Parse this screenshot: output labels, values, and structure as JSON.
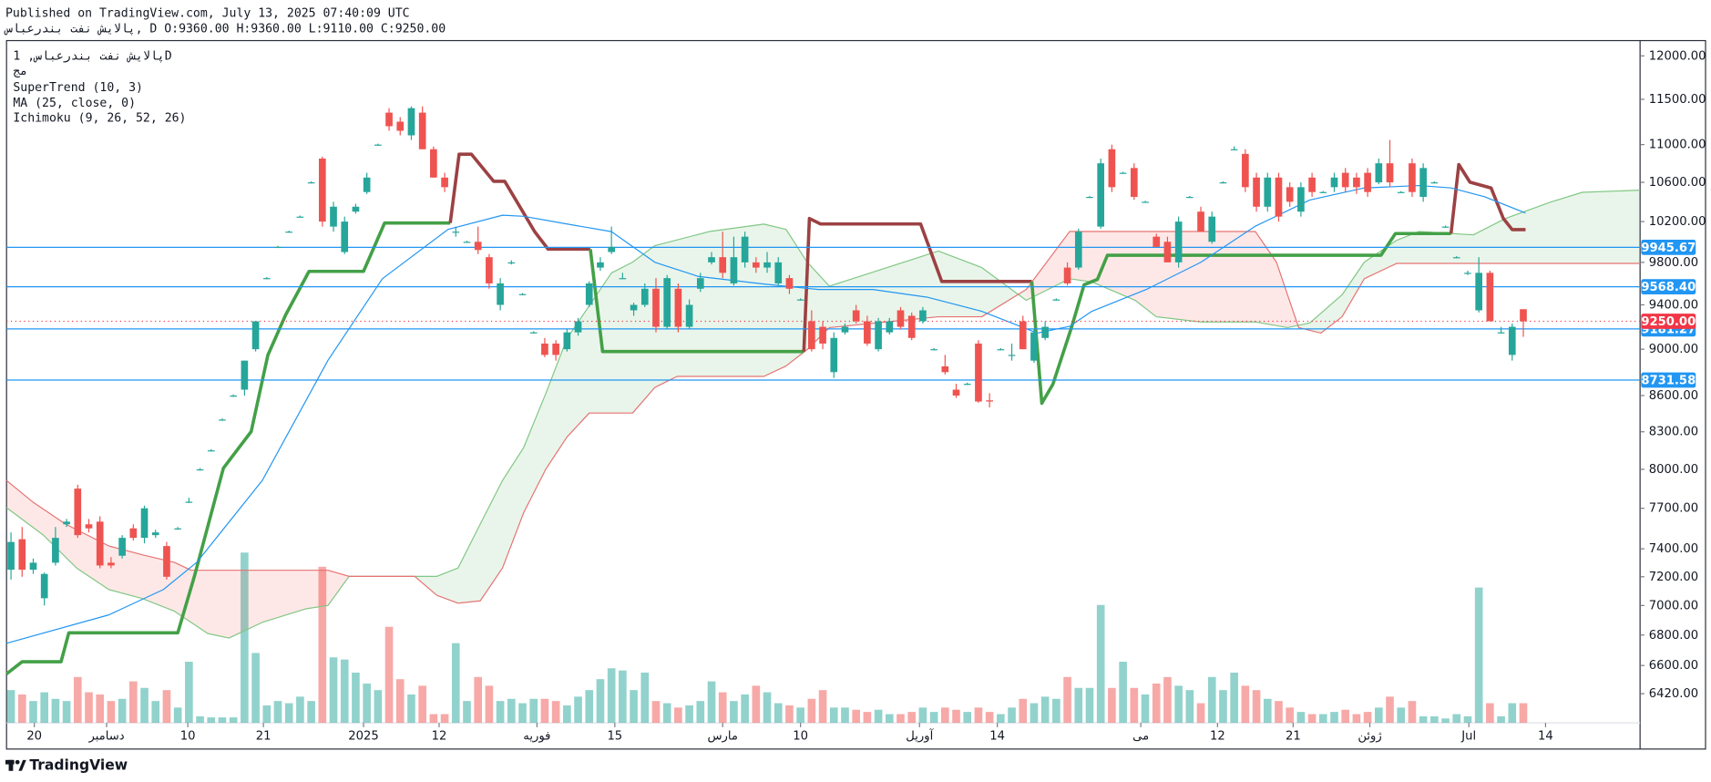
{
  "header": {
    "published": "Published on TradingView.com, July 13, 2025 07:40:09 UTC",
    "quote": "پالایش نفت بندرعباس, D O:9360.00 H:9360.00 L:9110.00 C:9250.00"
  },
  "chart_data": {
    "type": "candlestick",
    "symbol": "پالایش نفت بندرعباس, 1D",
    "exchange": "مج",
    "log_scale": true,
    "grid": false,
    "xlim": [
      -0.4,
      146.5
    ],
    "xticks": [
      {
        "value": 2.1,
        "label": "20"
      },
      {
        "value": 8.6,
        "label": "دسامبر"
      },
      {
        "value": 15.9,
        "label": "10"
      },
      {
        "value": 22.7,
        "label": "21"
      },
      {
        "value": 31.7,
        "label": "2025"
      },
      {
        "value": 38.5,
        "label": "12"
      },
      {
        "value": 47.3,
        "label": "فوریه"
      },
      {
        "value": 54.3,
        "label": "15"
      },
      {
        "value": 64,
        "label": "مارس"
      },
      {
        "value": 71,
        "label": "10"
      },
      {
        "value": 81.7,
        "label": "آوریل"
      },
      {
        "value": 88.7,
        "label": "14"
      },
      {
        "value": 101.6,
        "label": "می"
      },
      {
        "value": 108.5,
        "label": "12"
      },
      {
        "value": 115.3,
        "label": "21"
      },
      {
        "value": 122.2,
        "label": "ژوئن"
      },
      {
        "value": 131.1,
        "label": "Jul"
      },
      {
        "value": 138,
        "label": "14"
      }
    ],
    "ylim": [
      6239,
      12181
    ],
    "yticks": [
      {
        "value": 12000,
        "label": "12000.00"
      },
      {
        "value": 11500,
        "label": "11500.00"
      },
      {
        "value": 11000,
        "label": "11000.00"
      },
      {
        "value": 10600,
        "label": "10600.00"
      },
      {
        "value": 10200,
        "label": "10200.00"
      },
      {
        "value": 9800,
        "label": "9800.00"
      },
      {
        "value": 9400,
        "label": "9400.00"
      },
      {
        "value": 9000,
        "label": "9000.00"
      },
      {
        "value": 8600,
        "label": "8600.00"
      },
      {
        "value": 8300,
        "label": "8300.00"
      },
      {
        "value": 8000,
        "label": "8000.00"
      },
      {
        "value": 7700,
        "label": "7700.00"
      },
      {
        "value": 7400,
        "label": "7400.00"
      },
      {
        "value": 7200,
        "label": "7200.00"
      },
      {
        "value": 7000,
        "label": "7000.00"
      },
      {
        "value": 6800,
        "label": "6800.00"
      },
      {
        "value": 6600,
        "label": "6600.00"
      },
      {
        "value": 6420,
        "label": "6420.00"
      }
    ],
    "up_color": "#26a69a",
    "down_color": "#ef5350",
    "volume_up_color": "rgba(38,166,154,0.5)",
    "volume_down_color": "rgba(239,83,80,0.5)",
    "open": [
      7250,
      7470,
      7250,
      7050,
      7300,
      7580,
      7850,
      7580,
      7600,
      7300,
      7350,
      7550,
      7480,
      7500,
      7420,
      7550,
      7750,
      8000,
      8150,
      8400,
      8600,
      8650,
      9000,
      9650,
      9950,
      10100,
      10250,
      10600,
      10850,
      10150,
      9900,
      10300,
      10500,
      11000,
      11350,
      11250,
      11100,
      11350,
      10950,
      10650,
      10100,
      10000,
      10000,
      9850,
      9400,
      9800,
      9500,
      9150,
      9050,
      9050,
      9000,
      9150,
      9400,
      9750,
      9900,
      9650,
      9350,
      9400,
      9550,
      9200,
      9550,
      9200,
      9550,
      9800,
      9850,
      9600,
      9800,
      9800,
      9750,
      9600,
      9650,
      9450,
      9250,
      9200,
      8800,
      9150,
      9350,
      9250,
      9000,
      9150,
      9350,
      9300,
      9250,
      9000,
      8850,
      8650,
      8700,
      9050,
      8560,
      9000,
      8950,
      9250,
      8900,
      9100,
      9450,
      9750,
      9750,
      10450,
      10150,
      10950,
      10700,
      10750,
      10400,
      10050,
      10000,
      9800,
      10450,
      10300,
      10000,
      10600,
      10950,
      10900,
      10650,
      10350,
      10650,
      10550,
      10300,
      10650,
      10500,
      10550,
      10700,
      10650,
      10700,
      10600,
      10800,
      10500,
      10800,
      10450,
      10600,
      10150,
      9850,
      9700,
      9350,
      9700,
      9150,
      8950,
      9360
    ],
    "high": [
      7520,
      7560,
      7330,
      7230,
      7560,
      7620,
      7880,
      7620,
      7640,
      7340,
      7500,
      7580,
      7720,
      7540,
      7450,
      7560,
      7780,
      8010,
      8160,
      8410,
      8610,
      8900,
      9250,
      9660,
      9960,
      10110,
      10260,
      10610,
      10870,
      10400,
      10250,
      10380,
      10700,
      11010,
      11400,
      11300,
      11420,
      11420,
      10980,
      10700,
      10150,
      10010,
      10150,
      9880,
      9650,
      9820,
      9510,
      9160,
      9100,
      9080,
      9180,
      9280,
      9620,
      9850,
      10150,
      9700,
      9420,
      9600,
      9650,
      9680,
      9600,
      9450,
      9700,
      9900,
      10100,
      10050,
      10100,
      9850,
      9900,
      9850,
      9680,
      9460,
      9350,
      9250,
      9150,
      9230,
      9400,
      9300,
      9280,
      9280,
      9380,
      9330,
      9380,
      9010,
      8950,
      8700,
      8710,
      9080,
      8620,
      9010,
      9050,
      9300,
      9180,
      9250,
      9460,
      9800,
      10130,
      10460,
      10850,
      11000,
      10710,
      10800,
      10410,
      10080,
      10050,
      10250,
      10460,
      10350,
      10300,
      10610,
      10980,
      10950,
      10700,
      10700,
      10700,
      10600,
      10600,
      10700,
      10510,
      10700,
      10750,
      10700,
      10750,
      10850,
      11050,
      10510,
      10850,
      10800,
      10610,
      10160,
      9860,
      9720,
      9850,
      9720,
      9200,
      9230,
      9360
    ],
    "low": [
      7180,
      7200,
      7220,
      7000,
      7280,
      7560,
      7480,
      7520,
      7260,
      7260,
      7330,
      7460,
      7440,
      7480,
      7180,
      7540,
      7740,
      7990,
      8140,
      8390,
      8590,
      8600,
      8980,
      9640,
      9940,
      10090,
      10240,
      10590,
      10150,
      10100,
      9880,
      10280,
      10480,
      10990,
      11150,
      11100,
      11050,
      10950,
      10650,
      10500,
      10050,
      9990,
      9880,
      9550,
      9350,
      9780,
      9490,
      9140,
      8930,
      8900,
      8980,
      9120,
      9380,
      9720,
      9880,
      9640,
      9300,
      9380,
      9150,
      9180,
      9150,
      9180,
      9520,
      9780,
      9650,
      9580,
      9750,
      9700,
      9700,
      9580,
      9500,
      9440,
      8980,
      9000,
      8750,
      9130,
      9230,
      9030,
      8980,
      9130,
      9180,
      9080,
      9230,
      8990,
      8780,
      8580,
      8690,
      8540,
      8500,
      8990,
      8900,
      9000,
      8880,
      9080,
      9440,
      9580,
      9730,
      10440,
      10130,
      10500,
      10690,
      10420,
      10390,
      9950,
      9800,
      9750,
      10440,
      10100,
      9980,
      10590,
      10940,
      10500,
      10300,
      10300,
      10200,
      10350,
      10250,
      10450,
      10490,
      10500,
      10500,
      10480,
      10450,
      10580,
      10550,
      10490,
      10450,
      10400,
      10590,
      10140,
      9840,
      9680,
      9330,
      9250,
      9140,
      8900,
      9110
    ],
    "close": [
      7450,
      7250,
      7300,
      7220,
      7480,
      7600,
      7500,
      7550,
      7280,
      7280,
      7480,
      7480,
      7700,
      7520,
      7200,
      7550,
      7750,
      8000,
      8150,
      8400,
      8600,
      8900,
      9250,
      9650,
      9950,
      10100,
      10250,
      10600,
      10200,
      10350,
      10200,
      10350,
      10650,
      11000,
      11200,
      11150,
      11400,
      10950,
      10650,
      10550,
      10100,
      10000,
      9920,
      9600,
      9600,
      9800,
      9500,
      9150,
      8950,
      8950,
      9150,
      9250,
      9600,
      9800,
      9950,
      9650,
      9400,
      9550,
      9200,
      9650,
      9200,
      9400,
      9650,
      9850,
      9700,
      9850,
      10050,
      9750,
      9800,
      9800,
      9550,
      9450,
      9000,
      9050,
      9100,
      9200,
      9250,
      9050,
      9250,
      9250,
      9200,
      9100,
      9350,
      9000,
      8800,
      8600,
      8700,
      8550,
      8550,
      9000,
      8950,
      9000,
      9150,
      9200,
      9450,
      9600,
      10100,
      10450,
      10800,
      10550,
      10700,
      10450,
      10400,
      9950,
      9800,
      10200,
      10450,
      10100,
      10250,
      10600,
      10950,
      10550,
      10350,
      10650,
      10250,
      10400,
      10550,
      10500,
      10500,
      10650,
      10550,
      10550,
      10500,
      10800,
      10600,
      10500,
      10500,
      10750,
      10600,
      10150,
      9850,
      9700,
      9700,
      9250,
      9150,
      9200,
      9250
    ],
    "volume_lim": [
      0,
      160
    ],
    "volume": [
      30,
      26,
      20,
      28,
      22,
      20,
      42,
      28,
      26,
      20,
      22,
      38,
      32,
      20,
      30,
      14,
      56,
      6,
      5,
      5,
      5,
      156,
      64,
      16,
      20,
      18,
      24,
      20,
      143,
      60,
      58,
      46,
      36,
      30,
      88,
      40,
      26,
      34,
      8,
      8,
      73,
      20,
      42,
      34,
      20,
      22,
      18,
      22,
      22,
      20,
      16,
      24,
      30,
      40,
      50,
      48,
      30,
      46,
      20,
      18,
      14,
      16,
      20,
      38,
      28,
      20,
      26,
      34,
      28,
      18,
      16,
      14,
      22,
      30,
      14,
      14,
      12,
      10,
      12,
      8,
      8,
      10,
      14,
      10,
      14,
      12,
      10,
      14,
      10,
      8,
      14,
      22,
      18,
      24,
      22,
      42,
      32,
      32,
      108,
      32,
      56,
      32,
      26,
      36,
      42,
      34,
      30,
      18,
      42,
      30,
      46,
      34,
      30,
      22,
      20,
      14,
      10,
      8,
      8,
      10,
      12,
      8,
      10,
      14,
      24,
      14,
      20,
      6,
      6,
      4,
      8,
      6,
      124,
      18,
      6,
      18,
      18
    ],
    "indicators": [
      {
        "name": "SuperTrend (10, 3)",
        "width": 3,
        "segments": [
          {
            "color": "#43a047",
            "x": [
              -0.4,
              1,
              4.5,
              5.2,
              15,
              16.5,
              19.1,
              21.6,
              23.1,
              24.7,
              26.8,
              31.7,
              33.6,
              39.5
            ],
            "values": [
              6546,
              6624,
              6624,
              6815,
              6815,
              7205,
              8009,
              8302,
              8948,
              9308,
              9714,
              9714,
              10186,
              10186
            ]
          },
          {
            "color": "#9c4143",
            "x": [
              39.5,
              40.3,
              41.4,
              43.4,
              44.4,
              47.1,
              48.3,
              52.1
            ],
            "values": [
              10186,
              10897,
              10897,
              10611,
              10611,
              10099,
              9928,
              9928
            ]
          },
          {
            "color": "#43a047",
            "x": [
              52.1,
              53.2,
              71.3
            ],
            "values": [
              9928,
              8980,
              8980
            ]
          },
          {
            "color": "#9c4143",
            "x": [
              71.3,
              71.8,
              72.8,
              81.8,
              83.7,
              91.8
            ],
            "values": [
              8980,
              10231,
              10176,
              10176,
              9618,
              9618
            ]
          },
          {
            "color": "#43a047",
            "x": [
              91.8,
              92.7,
              93.7,
              95.4,
              96.5,
              97.7,
              98.6,
              123.2,
              124.5,
              129.5
            ],
            "values": [
              9618,
              8535,
              8697,
              9204,
              9587,
              9638,
              9869,
              9869,
              10081,
              10081
            ]
          },
          {
            "color": "#9c4143",
            "x": [
              129.5,
              130.2,
              131.2,
              133.1,
              134.2,
              135,
              136.2
            ],
            "values": [
              10081,
              10787,
              10602,
              10542,
              10232,
              10120,
              10120
            ]
          }
        ]
      },
      {
        "name": "MA (25, close, 0)",
        "width": 1,
        "line": {
          "color": "#2196f3",
          "x": [
            -0.4,
            8.8,
            13.7,
            16.7,
            22.6,
            28.5,
            33.4,
            39.3,
            44.2,
            46.1,
            50,
            54,
            57.9,
            61.8,
            67.7,
            72.6,
            77.5,
            82.4,
            87.3,
            92.3,
            95.2,
            97.2,
            102.1,
            107,
            111.9,
            116.8,
            121.7,
            126.6,
            129.5,
            132.5,
            136.2
          ],
          "values": [
            6745,
            6936,
            7110,
            7302,
            7913,
            8902,
            9644,
            10122,
            10264,
            10253,
            10176,
            10100,
            9801,
            9666,
            9594,
            9543,
            9543,
            9471,
            9341,
            9144,
            9204,
            9341,
            9543,
            9801,
            10154,
            10418,
            10542,
            10567,
            10542,
            10452,
            10286
          ]
        }
      },
      {
        "name": "Ichimoku (9, 26, 52, 26)",
        "width": 1,
        "up_fill": "rgba(76,175,80,0.12)",
        "down_fill": "rgba(244,67,54,0.12)",
        "span_a": {
          "color": "#81c784",
          "x": [
            -0.4,
            2.9,
            5.9,
            8.8,
            11.8,
            14.7,
            17.7,
            19.6,
            22.6,
            26.5,
            28.5,
            30.4,
            38.3,
            40.2,
            42.2,
            44.2,
            46.1,
            48.1,
            50,
            52,
            54,
            55.9,
            57.9,
            62.8,
            67.7,
            69.7,
            71.6,
            73.6,
            83.4,
            87.3,
            91.3,
            95.2,
            97.2,
            101.1,
            103,
            107,
            111.9,
            114.8,
            116.8,
            119.7,
            121.7,
            124.6,
            126.6,
            131.5,
            134.4,
            138.4,
            141.3,
            146.5
          ],
          "values": [
            7705,
            7501,
            7262,
            7110,
            7048,
            6961,
            6810,
            6780,
            6885,
            6977,
            7000,
            7203,
            7203,
            7262,
            7582,
            7913,
            8172,
            8619,
            9095,
            9392,
            9699,
            9802,
            9962,
            10101,
            10175,
            10122,
            9802,
            9574,
            9910,
            9750,
            9442,
            9644,
            9614,
            9442,
            9291,
            9244,
            9244,
            9193,
            9235,
            9493,
            9802,
            10014,
            10101,
            10068,
            10231,
            10395,
            10497,
            10519
          ]
        },
        "span_b": {
          "color": "#e57373",
          "x": [
            -0.4,
            2,
            4.9,
            8.8,
            11.8,
            14.7,
            16.2,
            28.5,
            30.4,
            36.3,
            38.3,
            40.2,
            42.2,
            44.2,
            46.1,
            48.1,
            50,
            52,
            55.9,
            57.9,
            59.9,
            67.7,
            69.7,
            71.6,
            73.6,
            83.4,
            87.3,
            91.3,
            95.2,
            111.9,
            113.8,
            115.8,
            117.8,
            119.7,
            121.7,
            124.6,
            146.5
          ],
          "values": [
            7913,
            7745,
            7582,
            7421,
            7357,
            7302,
            7246,
            7246,
            7203,
            7203,
            7070,
            7016,
            7032,
            7262,
            7666,
            8002,
            8258,
            8454,
            8454,
            8669,
            8763,
            8763,
            8853,
            8997,
            9193,
            9291,
            9291,
            9543,
            10101,
            10101,
            9802,
            9193,
            9144,
            9291,
            9644,
            9790,
            9790
          ]
        }
      }
    ],
    "price_lines": [
      {
        "level": 9945.67,
        "color": "#2196f3"
      },
      {
        "level": {
          "value": 9568.4,
          "label": "9568.40"
        },
        "color": "#2196f3"
      },
      {
        "level": 9181.27,
        "color": "#2196f3"
      },
      {
        "level": 8731.58,
        "color": "#2196f3"
      }
    ],
    "last_price": {
      "value": 9250,
      "label": "9250.00"
    },
    "last_color": "#f23645"
  },
  "footer": {
    "brand": "TradingView"
  }
}
